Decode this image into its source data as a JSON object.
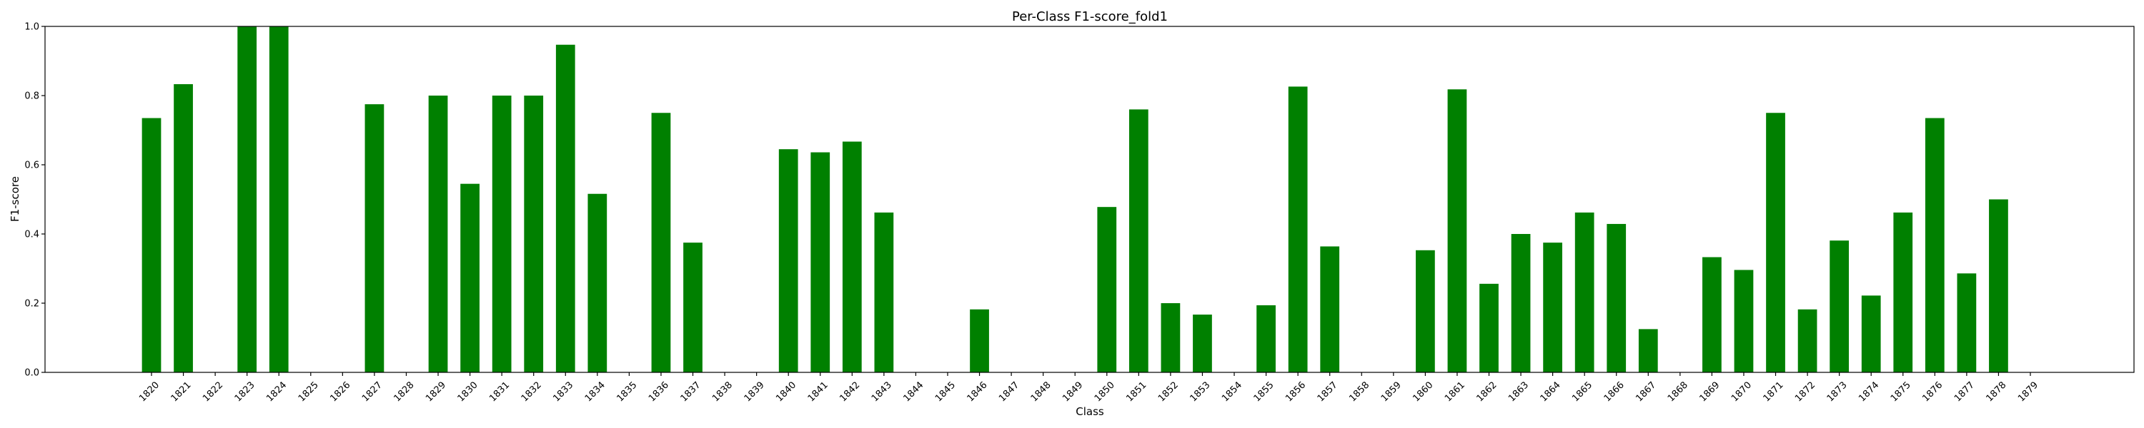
{
  "chart_data": {
    "type": "bar",
    "title": "Per-Class F1-score_fold1",
    "xlabel": "Class",
    "ylabel": "F1-score",
    "ylim": [
      0,
      1.0
    ],
    "yticks": [
      "0.0",
      "0.2",
      "0.4",
      "0.6",
      "0.8",
      "1.0"
    ],
    "grid": false,
    "bar_color": "#008000",
    "categories": [
      "1820",
      "1821",
      "1822",
      "1823",
      "1824",
      "1825",
      "1826",
      "1827",
      "1828",
      "1829",
      "1830",
      "1831",
      "1832",
      "1833",
      "1834",
      "1835",
      "1836",
      "1837",
      "1838",
      "1839",
      "1840",
      "1841",
      "1842",
      "1843",
      "1844",
      "1845",
      "1846",
      "1847",
      "1848",
      "1849",
      "1850",
      "1851",
      "1852",
      "1853",
      "1854",
      "1855",
      "1856",
      "1857",
      "1858",
      "1859",
      "1860",
      "1861",
      "1862",
      "1863",
      "1864",
      "1865",
      "1866",
      "1867",
      "1868",
      "1869",
      "1870",
      "1871",
      "1872",
      "1873",
      "1874",
      "1875",
      "1876",
      "1877",
      "1878",
      "1879"
    ],
    "values": [
      0.735,
      0.833,
      0,
      1.0,
      1.0,
      0,
      0,
      0.775,
      0,
      0.8,
      0.545,
      0.8,
      0.8,
      0.947,
      0.516,
      0,
      0.75,
      0.375,
      0,
      0,
      0.645,
      0.636,
      0.667,
      0.462,
      0,
      0,
      0.182,
      0,
      0,
      0,
      0.478,
      0.76,
      0.2,
      0.167,
      0,
      0.194,
      0.826,
      0.364,
      0,
      0,
      0.353,
      0.818,
      0.256,
      0.4,
      0.375,
      0.462,
      0.429,
      0.125,
      0,
      0.333,
      0.296,
      0.75,
      0.182,
      0.381,
      0.222,
      0.462,
      0.735,
      0.286,
      0.5,
      0
    ]
  }
}
